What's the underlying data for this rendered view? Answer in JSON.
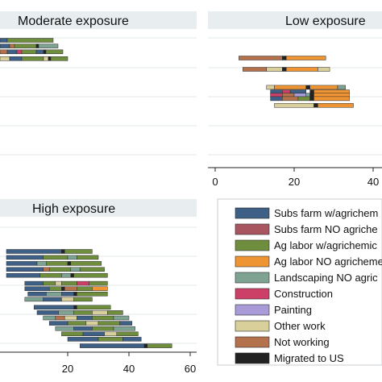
{
  "chart_data": {
    "type": "bar",
    "categories": [
      "Subs farm w/agrichem",
      "Subs farm NO agriche",
      "Ag labor w/agrichemic",
      "Ag labor NO agricheme",
      "Landscaping NO agric",
      "Construction",
      "Painting",
      "Other work",
      "Not working",
      "Migrated to US"
    ],
    "colors": {
      "Subs farm w/agrichem": "#3e5f86",
      "Subs farm NO agriche": "#a8555f",
      "Ag labor w/agrichemic": "#6e8e3e",
      "Ag labor NO agricheme": "#ef9433",
      "Landscaping NO agric": "#7ea392",
      "Construction": "#cc3f66",
      "Painting": "#a89bd8",
      "Other work": "#d8cf9a",
      "Not working": "#b3714c",
      "Migrated to US": "#222222"
    },
    "legend": {
      "placement": "bottom-right"
    },
    "panels": [
      {
        "title": "Moderate exposure",
        "xlim": [
          0,
          50
        ],
        "xticks": [],
        "rows": [
          {
            "y": 1.0,
            "segments": [
              [
                "Subs farm w/agrichem",
                0,
                3
              ],
              [
                "Ag labor w/agrichemic",
                3,
                22
              ]
            ]
          },
          {
            "y": 1.55,
            "segments": [
              [
                "Subs farm w/agrichem",
                0,
                4
              ],
              [
                "Not working",
                4,
                6
              ],
              [
                "Ag labor w/agrichemic",
                6,
                15
              ],
              [
                "Migrated to US",
                15,
                16
              ],
              [
                "Landscaping NO agric",
                16,
                24
              ]
            ]
          },
          {
            "y": 2.1,
            "segments": [
              [
                "Not working",
                0,
                3
              ],
              [
                "Subs farm w/agrichem",
                3,
                7
              ],
              [
                "Construction",
                7,
                9
              ],
              [
                "Ag labor w/agrichemic",
                9,
                15
              ],
              [
                "Subs farm w/agrichem",
                15,
                18
              ],
              [
                "Migrated to US",
                18,
                19
              ],
              [
                "Ag labor w/agrichemic",
                19,
                26
              ]
            ]
          },
          {
            "y": 2.75,
            "segments": [
              [
                "Other work",
                0,
                4
              ],
              [
                "Subs farm w/agrichem",
                4,
                9
              ],
              [
                "Ag labor w/agrichemic",
                9,
                18
              ],
              [
                "Other work",
                18,
                20
              ],
              [
                "Migrated to US",
                20,
                21
              ],
              [
                "Ag labor w/agrichemic",
                21,
                28
              ]
            ]
          }
        ]
      },
      {
        "title": "Low exposure",
        "xlim": [
          -3,
          45
        ],
        "xticks": [
          0,
          20,
          40
        ],
        "rows": [
          {
            "y": 1.0,
            "segments": [
              [
                "Not working",
                6,
                17
              ],
              [
                "Migrated to US",
                17,
                18
              ],
              [
                "Ag labor NO agricheme",
                18,
                28
              ]
            ]
          },
          {
            "y": 2.0,
            "segments": [
              [
                "Not working",
                7,
                13
              ],
              [
                "Other work",
                13,
                17
              ],
              [
                "Migrated to US",
                17,
                18
              ],
              [
                "Ag labor NO agricheme",
                18,
                26
              ],
              [
                "Other work",
                26,
                29
              ]
            ]
          },
          {
            "y": 3.6,
            "segments": [
              [
                "Other work",
                13,
                15
              ],
              [
                "Ag labor NO agricheme",
                15,
                23
              ],
              [
                "Migrated to US",
                23,
                24
              ],
              [
                "Ag labor NO agricheme",
                24,
                31
              ],
              [
                "Landscaping NO agric",
                31,
                33
              ]
            ]
          },
          {
            "y": 4.0,
            "segments": [
              [
                "Subs farm w/agrichem",
                14,
                17
              ],
              [
                "Construction",
                17,
                19
              ],
              [
                "Subs farm w/agrichem",
                19,
                23
              ],
              [
                "Migrated to US",
                24,
                25
              ],
              [
                "Ag labor NO agricheme",
                25,
                34
              ]
            ]
          },
          {
            "y": 4.3,
            "segments": [
              [
                "Construction",
                14,
                17
              ],
              [
                "Not working",
                17,
                20
              ],
              [
                "Painting",
                20,
                23
              ],
              [
                "Landscaping NO agric",
                23,
                24
              ],
              [
                "Migrated to US",
                24,
                25
              ],
              [
                "Ag labor NO agricheme",
                25,
                34
              ]
            ]
          },
          {
            "y": 4.6,
            "segments": [
              [
                "Subs farm w/agrichem",
                14,
                17
              ],
              [
                "Not working",
                17,
                21
              ],
              [
                "Ag labor w/agrichemic",
                21,
                24
              ],
              [
                "Migrated to US",
                24,
                25
              ],
              [
                "Ag labor NO agricheme",
                25,
                34
              ]
            ]
          },
          {
            "y": 5.2,
            "segments": [
              [
                "Other work",
                15,
                25
              ],
              [
                "Migrated to US",
                25,
                26
              ],
              [
                "Ag labor NO agricheme",
                26,
                35
              ]
            ]
          }
        ]
      },
      {
        "title": "High exposure",
        "xlim": [
          0,
          60
        ],
        "xticks": [
          20,
          40,
          60
        ],
        "rows": [
          {
            "y": 1.0,
            "segments": [
              [
                "Subs farm w/agrichem",
                0,
                18
              ],
              [
                "Migrated to US",
                18,
                19
              ],
              [
                "Ag labor w/agrichemic",
                19,
                28
              ]
            ]
          },
          {
            "y": 1.45,
            "segments": [
              [
                "Subs farm w/agrichem",
                0,
                12
              ],
              [
                "Ag labor w/agrichemic",
                12,
                20
              ],
              [
                "Landscaping NO agric",
                20,
                23
              ],
              [
                "Ag labor w/agrichemic",
                23,
                30
              ]
            ]
          },
          {
            "y": 1.9,
            "segments": [
              [
                "Subs farm w/agrichem",
                0,
                10
              ],
              [
                "Landscaping NO agric",
                10,
                13
              ],
              [
                "Ag labor w/agrichemic",
                13,
                20
              ],
              [
                "Migrated to US",
                20,
                21
              ],
              [
                "Ag labor w/agrichemic",
                21,
                31
              ]
            ]
          },
          {
            "y": 2.35,
            "segments": [
              [
                "Subs farm w/agrichem",
                0,
                12
              ],
              [
                "Not working",
                12,
                14
              ],
              [
                "Ag labor w/agrichemic",
                14,
                21
              ],
              [
                "Landscaping NO agric",
                21,
                24
              ],
              [
                "Ag labor w/agrichemic",
                24,
                32
              ]
            ]
          },
          {
            "y": 2.8,
            "segments": [
              [
                "Subs farm w/agrichem",
                0,
                11
              ],
              [
                "Ag labor w/agrichemic",
                11,
                18
              ],
              [
                "Landscaping NO agric",
                18,
                21
              ],
              [
                "Migrated to US",
                21,
                22
              ],
              [
                "Ag labor w/agrichemic",
                22,
                33
              ]
            ]
          },
          {
            "y": 3.4,
            "segments": [
              [
                "Subs farm w/agrichem",
                6,
                12
              ],
              [
                "Ag labor w/agrichemic",
                12,
                16
              ],
              [
                "Other work",
                16,
                18
              ],
              [
                "Ag labor w/agrichemic",
                18,
                23
              ],
              [
                "Construction",
                23,
                27
              ],
              [
                "Ag labor w/agrichemic",
                27,
                33
              ]
            ]
          },
          {
            "y": 3.8,
            "segments": [
              [
                "Subs farm w/agrichem",
                6,
                14
              ],
              [
                "Ag labor w/agrichemic",
                14,
                18
              ],
              [
                "Migrated to US",
                18,
                19
              ],
              [
                "Not working",
                19,
                23
              ],
              [
                "Ag labor w/agrichemic",
                23,
                28
              ],
              [
                "Ag labor NO agricheme",
                28,
                33
              ]
            ]
          },
          {
            "y": 4.2,
            "segments": [
              [
                "Subs farm w/agrichem",
                7,
                13
              ],
              [
                "Landscaping NO agric",
                13,
                18
              ],
              [
                "Subs farm w/agrichem",
                18,
                22
              ],
              [
                "Migrated to US",
                22,
                23
              ],
              [
                "Ag labor w/agrichemic",
                23,
                33
              ]
            ]
          },
          {
            "y": 4.6,
            "segments": [
              [
                "Landscaping NO agric",
                6,
                12
              ],
              [
                "Subs farm w/agrichem",
                12,
                18
              ],
              [
                "Other work",
                18,
                22
              ],
              [
                "Ag labor w/agrichemic",
                22,
                28
              ]
            ]
          },
          {
            "y": 5.2,
            "segments": [
              [
                "Subs farm w/agrichem",
                9,
                22
              ],
              [
                "Migrated to US",
                22,
                23
              ],
              [
                "Ag labor w/agrichemic",
                23,
                34
              ]
            ]
          },
          {
            "y": 5.6,
            "segments": [
              [
                "Subs farm w/agrichem",
                10,
                17
              ],
              [
                "Landscaping NO agric",
                17,
                22
              ],
              [
                "Ag labor w/agrichemic",
                22,
                28
              ],
              [
                "Other work",
                28,
                33
              ],
              [
                "Ag labor w/agrichemic",
                33,
                38
              ]
            ]
          },
          {
            "y": 6.0,
            "segments": [
              [
                "Landscaping NO agric",
                12,
                16
              ],
              [
                "Not working",
                16,
                19
              ],
              [
                "Other work",
                19,
                23
              ],
              [
                "Subs farm w/agrichem",
                23,
                28
              ],
              [
                "Ag labor w/agrichemic",
                28,
                35
              ],
              [
                "Landscaping NO agric",
                35,
                40
              ]
            ]
          },
          {
            "y": 6.4,
            "segments": [
              [
                "Subs farm w/agrichem",
                14,
                20
              ],
              [
                "Ag labor w/agrichemic",
                20,
                26
              ],
              [
                "Other work",
                26,
                30
              ],
              [
                "Ag labor w/agrichemic",
                30,
                37
              ],
              [
                "Subs farm w/agrichem",
                37,
                41
              ]
            ]
          },
          {
            "y": 6.8,
            "segments": [
              [
                "Landscaping NO agric",
                16,
                22
              ],
              [
                "Subs farm w/agrichem",
                22,
                28
              ],
              [
                "Ag labor w/agrichemic",
                28,
                35
              ],
              [
                "Landscaping NO agric",
                35,
                42
              ]
            ]
          },
          {
            "y": 7.2,
            "segments": [
              [
                "Ag labor w/agrichemic",
                18,
                25
              ],
              [
                "Subs farm w/agrichem",
                25,
                32
              ],
              [
                "Other work",
                32,
                36
              ],
              [
                "Ag labor w/agrichemic",
                36,
                43
              ]
            ]
          },
          {
            "y": 7.6,
            "segments": [
              [
                "Subs farm w/agrichem",
                20,
                30
              ],
              [
                "Ag labor w/agrichemic",
                30,
                38
              ],
              [
                "Subs farm w/agrichem",
                38,
                44
              ]
            ]
          },
          {
            "y": 8.1,
            "segments": [
              [
                "Subs farm w/agrichem",
                24,
                45
              ],
              [
                "Migrated to US",
                45,
                46
              ],
              [
                "Ag labor w/agrichemic",
                46,
                54
              ]
            ]
          }
        ]
      }
    ]
  }
}
